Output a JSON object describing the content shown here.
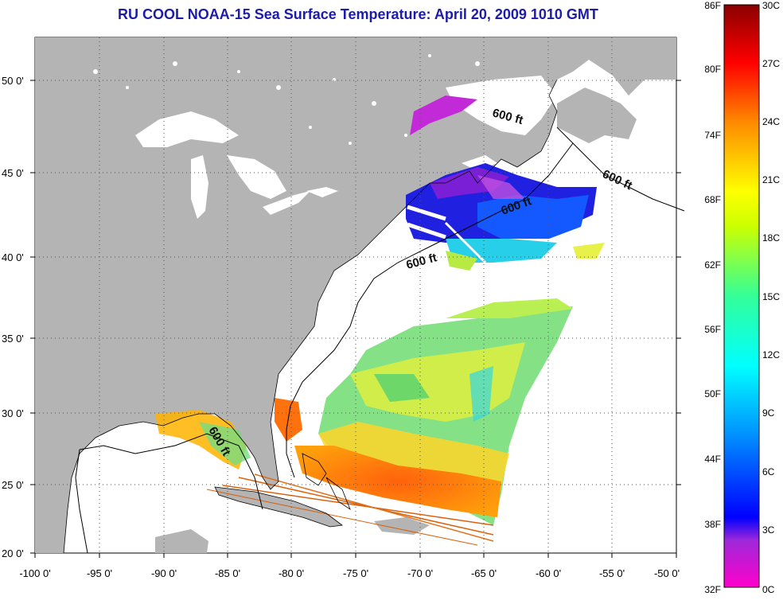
{
  "title": "RU COOL  NOAA-15  Sea Surface Temperature:  April 20, 2009 1010 GMT",
  "map": {
    "lon_ticks": [
      "-100 0'",
      "-95 0'",
      "-90 0'",
      "-85 0'",
      "-80 0'",
      "-75 0'",
      "-70 0'",
      "-65 0'",
      "-60 0'",
      "-55 0'",
      "-50 0'"
    ],
    "lat_ticks": [
      "50 0'",
      "45 0'",
      "40 0'",
      "35 0'",
      "30 0'",
      "25 0'",
      "20 0'"
    ],
    "isobath_labels": [
      "600 ft",
      "600 ft",
      "600 ft",
      "600 ft",
      "600 ft"
    ],
    "colors": {
      "land": "#b4b4b4",
      "ocean": "#ffffff",
      "title": "#1c1ca8"
    }
  },
  "colorbar": {
    "fahrenheit": [
      "86F",
      "80F",
      "74F",
      "68F",
      "62F",
      "56F",
      "50F",
      "44F",
      "38F",
      "32F"
    ],
    "celsius": [
      "30C",
      "27C",
      "24C",
      "21C",
      "18C",
      "15C",
      "12C",
      "9C",
      "6C",
      "3C",
      "0C"
    ]
  }
}
